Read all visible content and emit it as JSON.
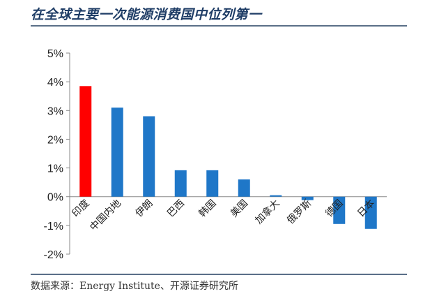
{
  "title": "在全球主要一次能源消费国中位列第一",
  "source": "数据来源：Energy Institute、开源证券研究所",
  "colors": {
    "highlight": "#ff0000",
    "bar": "#1f77c8",
    "axis": "#888888",
    "rule": "#5a6f88"
  },
  "chart_data": {
    "type": "bar",
    "title": "",
    "xlabel": "",
    "ylabel": "",
    "categories": [
      "印度",
      "中国内地",
      "伊朗",
      "巴西",
      "韩国",
      "美国",
      "加拿大",
      "俄罗斯",
      "德国",
      "日本"
    ],
    "values": [
      3.85,
      3.1,
      2.8,
      0.92,
      0.92,
      0.6,
      0.05,
      -0.12,
      -0.95,
      -1.12
    ],
    "highlight_index": 0,
    "ylim": [
      -2,
      5
    ],
    "yticks": [
      "-2%",
      "-1%",
      "0%",
      "1%",
      "2%",
      "3%",
      "4%",
      "5%"
    ],
    "ytick_values": [
      -2,
      -1,
      0,
      1,
      2,
      3,
      4,
      5
    ],
    "grid": false,
    "legend": "none"
  }
}
